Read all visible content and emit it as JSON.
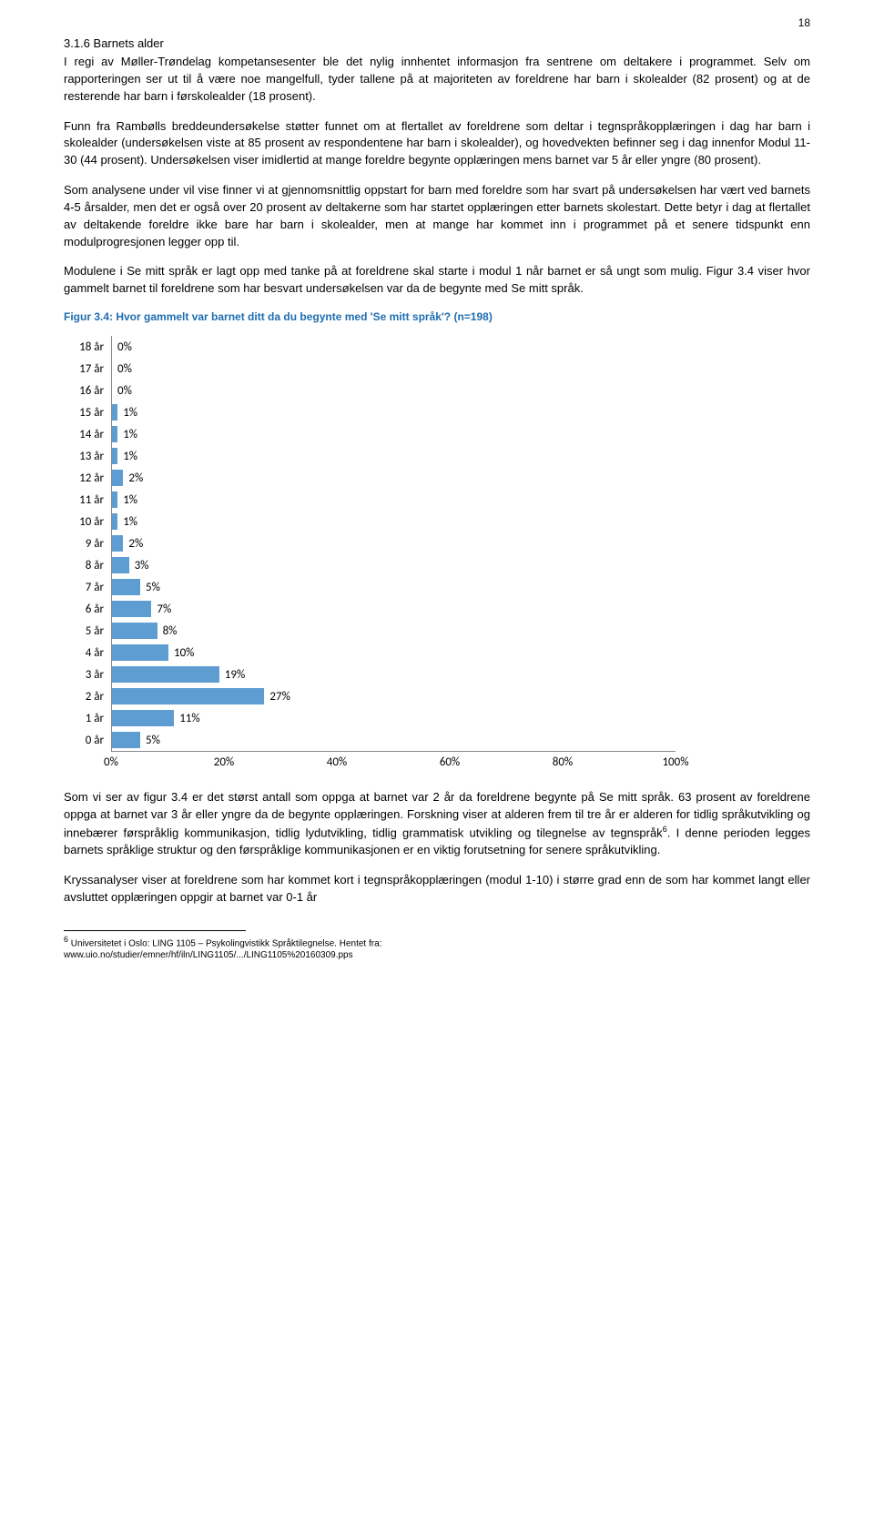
{
  "page_number": "18",
  "heading": "3.1.6  Barnets alder",
  "para1": "I regi av Møller-Trøndelag kompetansesenter ble det nylig innhentet informasjon fra sentrene om deltakere i programmet. Selv om rapporteringen ser ut til å være noe mangelfull, tyder tallene på at majoriteten av foreldrene har barn i skolealder (82 prosent) og at de resterende har barn i førskolealder (18 prosent).",
  "para2": "Funn fra Rambølls breddeundersøkelse støtter funnet om at flertallet av foreldrene som deltar i tegnspråkopplæringen i dag har barn i skolealder (undersøkelsen viste at 85 prosent av respondentene har barn i skolealder), og hovedvekten befinner seg i dag innenfor Modul 11-30 (44 prosent). Undersøkelsen viser imidlertid at mange foreldre begynte opplæringen mens barnet var 5 år eller yngre (80 prosent).",
  "para3": "Som analysene under vil vise finner vi at gjennomsnittlig oppstart for barn med foreldre som har svart på undersøkelsen har vært ved barnets 4-5 årsalder, men det er også over 20 prosent av deltakerne som har startet opplæringen etter barnets skolestart. Dette betyr i dag at flertallet av deltakende foreldre ikke bare har barn i skolealder, men at mange har kommet inn i programmet på et senere tidspunkt enn modulprogresjonen legger opp til.",
  "para4": "Modulene i Se mitt språk er lagt opp med tanke på at foreldrene skal starte i modul 1 når barnet er så ungt som mulig. Figur 3.4 viser hvor gammelt barnet til foreldrene som har besvart undersøkelsen var da de begynte med Se mitt språk.",
  "fig_title": "Figur 3.4: Hvor gammelt var barnet ditt da du begynte med 'Se mitt språk'? (n=198)",
  "chart": {
    "type": "bar-horizontal",
    "bar_color": "#5e9dd2",
    "text_color": "#000000",
    "axis_color": "#888888",
    "xlim": [
      0,
      100
    ],
    "xtick_step": 20,
    "xticks": [
      "0%",
      "20%",
      "40%",
      "60%",
      "80%",
      "100%"
    ],
    "rows": [
      {
        "label": "18 år",
        "value": 0,
        "display": "0%"
      },
      {
        "label": "17 år",
        "value": 0,
        "display": "0%"
      },
      {
        "label": "16 år",
        "value": 0,
        "display": "0%"
      },
      {
        "label": "15 år",
        "value": 1,
        "display": "1%"
      },
      {
        "label": "14 år",
        "value": 1,
        "display": "1%"
      },
      {
        "label": "13 år",
        "value": 1,
        "display": "1%"
      },
      {
        "label": "12 år",
        "value": 2,
        "display": "2%"
      },
      {
        "label": "11 år",
        "value": 1,
        "display": "1%"
      },
      {
        "label": "10 år",
        "value": 1,
        "display": "1%"
      },
      {
        "label": "9 år",
        "value": 2,
        "display": "2%"
      },
      {
        "label": "8 år",
        "value": 3,
        "display": "3%"
      },
      {
        "label": "7 år",
        "value": 5,
        "display": "5%"
      },
      {
        "label": "6 år",
        "value": 7,
        "display": "7%"
      },
      {
        "label": "5 år",
        "value": 8,
        "display": "8%"
      },
      {
        "label": "4 år",
        "value": 10,
        "display": "10%"
      },
      {
        "label": "3 år",
        "value": 19,
        "display": "19%"
      },
      {
        "label": "2 år",
        "value": 27,
        "display": "27%"
      },
      {
        "label": "1 år",
        "value": 11,
        "display": "11%"
      },
      {
        "label": "0 år",
        "value": 5,
        "display": "5%"
      }
    ]
  },
  "para5": "Som vi ser av figur 3.4 er det størst antall som oppga at barnet var 2 år da foreldrene begynte på Se mitt språk. 63 prosent av foreldrene oppga at barnet var 3 år eller yngre da de begynte opplæringen.  Forskning viser at alderen frem til tre år er alderen for tidlig språkutvikling og innebærer førspråklig kommunikasjon, tidlig lydutvikling, tidlig grammatisk utvikling og tilegnelse av tegnspråk",
  "para5_foot_marker": "6",
  "para5b": ". I denne perioden legges barnets språklige struktur og den førspråklige kommunikasjonen er en viktig forutsetning for senere språkutvikling.",
  "para6": "Kryssanalyser viser at foreldrene som har kommet kort i tegnspråkopplæringen (modul 1-10) i større grad enn de som har kommet langt eller avsluttet opplæringen oppgir at barnet var 0-1 år",
  "footnote_marker": "6",
  "footnote_line1": " Universitetet i Oslo: LING 1105 – Psykolingvistikk Språktilegnelse. Hentet fra:",
  "footnote_line2": "www.uio.no/studier/emner/hf/iln/LING1105/.../LING1105%20160309.pps",
  "colors": {
    "fig_title_color": "#1f6db0",
    "body_text": "#000000",
    "background": "#ffffff"
  }
}
